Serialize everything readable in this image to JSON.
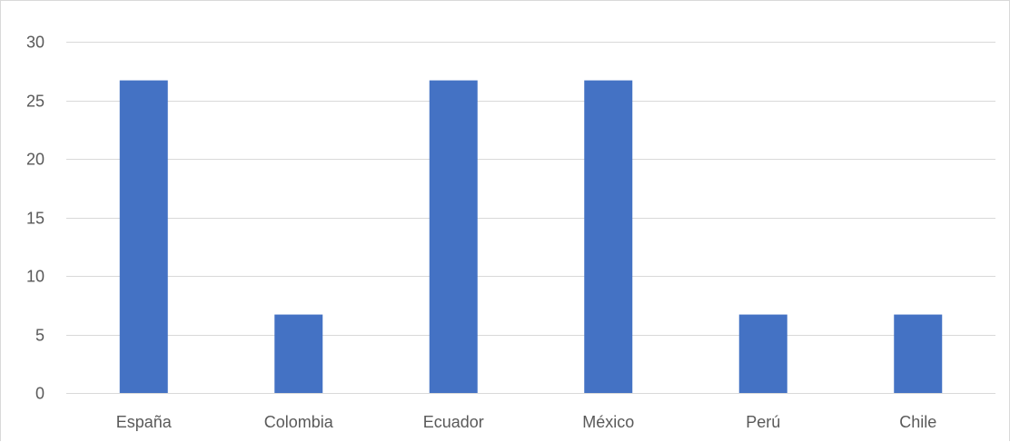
{
  "chart_data": {
    "type": "bar",
    "title": "",
    "xlabel": "",
    "ylabel": "",
    "categories": [
      "España",
      "Colombia",
      "Ecuador",
      "México",
      "Perú",
      "Chile"
    ],
    "values": [
      26.7,
      6.7,
      26.7,
      26.7,
      6.7,
      6.7
    ],
    "ylim": [
      0,
      30
    ],
    "yticks": [
      0,
      5,
      10,
      15,
      20,
      25,
      30
    ],
    "ytick_labels": [
      "0",
      "5",
      "10",
      "15",
      "20",
      "25",
      "30"
    ],
    "grid": true,
    "legend": "none",
    "bar_color": "#4472c4"
  }
}
